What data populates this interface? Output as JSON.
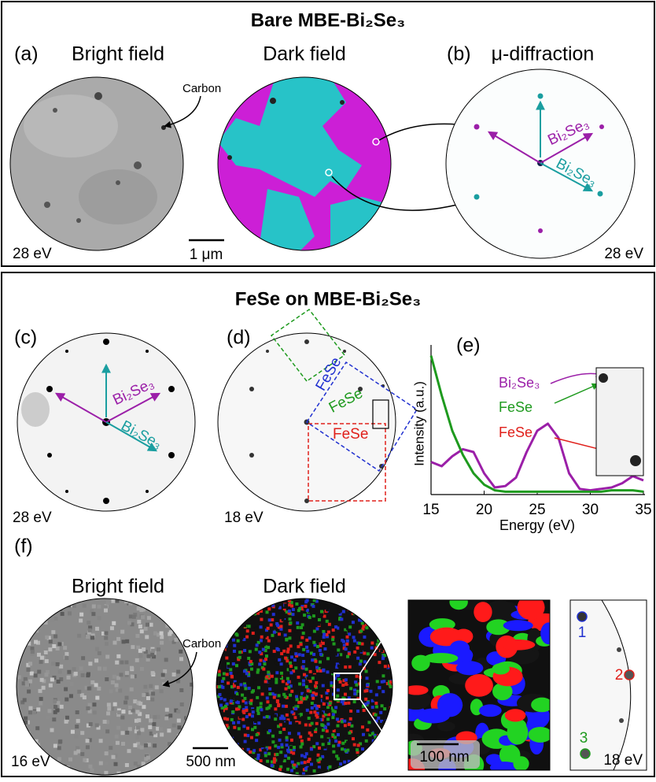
{
  "panel_top": {
    "title": "Bare MBE-Bi₂Se₃",
    "a_label": "(a)",
    "a_title": "Bright field",
    "dark_title": "Dark field",
    "b_label": "(b)",
    "b_title": "μ-diffraction",
    "carbon": "Carbon",
    "energy_a": "28 eV",
    "scale": "1 μm",
    "energy_b": "28 eV",
    "spot_1": "Bi₂Se₃",
    "spot_2": "Bi₂Se₃"
  },
  "panel_bottom": {
    "title": "FeSe on MBE-Bi₂Se₃",
    "c_label": "(c)",
    "d_label": "(d)",
    "e_label": "(e)",
    "c_spot_1": "Bi₂Se₃",
    "c_spot_2": "Bi₂Se₃",
    "energy_c": "28 eV",
    "energy_d": "18 eV",
    "d_box_1": "FeSe",
    "d_box_2": "FeSe",
    "d_box_3": "FeSe",
    "f_label": "(f)",
    "f_bright": "Bright field",
    "f_dark": "Dark field",
    "f_carbon": "Carbon",
    "energy_f": "16 eV",
    "scale_f": "500 nm",
    "scale_zoom": "100 nm",
    "spot_labels": [
      "1",
      "2",
      "3"
    ],
    "energy_inset": "18 eV"
  },
  "chart_data": {
    "type": "line",
    "x_label": "Energy (eV)",
    "y_label": "Intensity (a.u.)",
    "x": [
      15,
      16,
      17,
      18,
      19,
      20,
      21,
      22,
      23,
      24,
      25,
      26,
      27,
      28,
      29,
      30,
      31,
      32,
      33,
      34,
      35
    ],
    "xlim": [
      15,
      35
    ],
    "xticks": [
      15,
      20,
      25,
      30,
      35
    ],
    "ylim": [
      0,
      1
    ],
    "series": [
      {
        "name": "Bi₂Se₃",
        "color": "#9b1fa8",
        "values": [
          0.23,
          0.2,
          0.27,
          0.32,
          0.3,
          0.15,
          0.05,
          0.06,
          0.12,
          0.3,
          0.45,
          0.5,
          0.4,
          0.15,
          0.04,
          0.03,
          0.04,
          0.05,
          0.08,
          0.13,
          0.1
        ]
      },
      {
        "name": "FeSe",
        "color": "#1e9a1e",
        "values": [
          0.98,
          0.7,
          0.45,
          0.28,
          0.15,
          0.07,
          0.03,
          0.02,
          0.02,
          0.02,
          0.02,
          0.02,
          0.02,
          0.02,
          0.02,
          0.02,
          0.02,
          0.03,
          0.03,
          0.03,
          0.02
        ]
      }
    ],
    "annotations": [
      {
        "text": "FeSe",
        "color": "#e0201b"
      }
    ]
  }
}
